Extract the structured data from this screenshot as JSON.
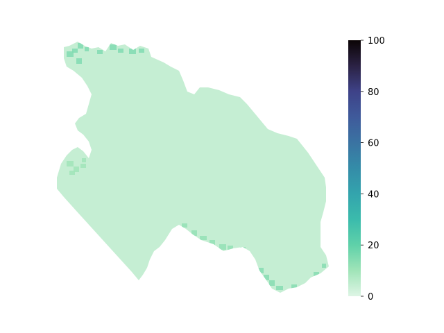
{
  "chart_data": {
    "type": "heatmap",
    "description": "",
    "region_base_value": 4,
    "highlight_areas": [
      {
        "label": "northwest-edge",
        "value": 15
      },
      {
        "label": "west-bulge",
        "value": 10
      },
      {
        "label": "southern-valley",
        "value": 12
      },
      {
        "label": "southeast-edge",
        "value": 14
      }
    ],
    "colorbar": {
      "min": 0,
      "max": 100,
      "ticks": [
        0,
        20,
        40,
        60,
        80,
        100
      ],
      "ticks_text": [
        "0",
        "20",
        "40",
        "60",
        "80",
        "100"
      ],
      "colormap": "mako_r",
      "stops": [
        {
          "value": 0,
          "color": "#def5e5"
        },
        {
          "value": 10,
          "color": "#a0e4b8"
        },
        {
          "value": 20,
          "color": "#5fd1a9"
        },
        {
          "value": 30,
          "color": "#3bbbac"
        },
        {
          "value": 40,
          "color": "#33a4ad"
        },
        {
          "value": 50,
          "color": "#348ca8"
        },
        {
          "value": 60,
          "color": "#3a73a2"
        },
        {
          "value": 70,
          "color": "#3f5a9b"
        },
        {
          "value": 80,
          "color": "#3e4288"
        },
        {
          "value": 90,
          "color": "#2b2244"
        },
        {
          "value": 100,
          "color": "#0b0405"
        }
      ]
    }
  }
}
